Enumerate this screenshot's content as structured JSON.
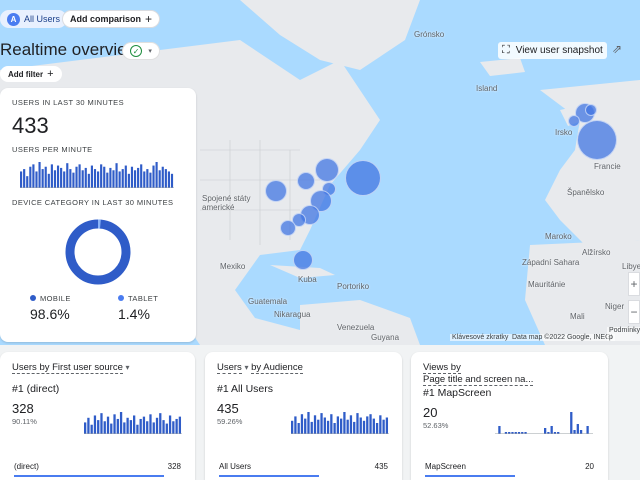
{
  "header": {
    "chip_badge": "A",
    "chip_all_users": "All Users",
    "add_comparison": "Add comparison",
    "add_comparison_icon": "plus-icon",
    "title": "Realtime overview",
    "add_filter": "Add filter",
    "view_snapshot": "View user snapshot",
    "status_icon": "check-circle-icon",
    "share_icon": "share-icon"
  },
  "map": {
    "labels": [
      {
        "text": "Grónsko"
      },
      {
        "text": "Island"
      },
      {
        "text": "Irsko"
      },
      {
        "text": "Francie"
      },
      {
        "text": "Španělsko"
      },
      {
        "text": "Spojené státy americké"
      },
      {
        "text": "Mexiko"
      },
      {
        "text": "Kuba"
      },
      {
        "text": "Guatemala"
      },
      {
        "text": "Nikaragua"
      },
      {
        "text": "Portoriko"
      },
      {
        "text": "Venezuela"
      },
      {
        "text": "Guyana"
      },
      {
        "text": "Alžírsko"
      },
      {
        "text": "Libye"
      },
      {
        "text": "Mali"
      },
      {
        "text": "Niger"
      },
      {
        "text": "Mauritánie"
      },
      {
        "text": "Maroko"
      },
      {
        "text": "Západní Sahara"
      }
    ],
    "attribution_shortcuts": "Klávesové zkratky",
    "attribution_data": "Data map ©2022 Google, INEGI",
    "attribution_terms": "Podmínky p"
  },
  "left_card": {
    "users_30_label": "USERS IN LAST 30 MINUTES",
    "users_30_value": "433",
    "users_per_minute_label": "USERS PER MINUTE",
    "device_label": "DEVICE CATEGORY IN LAST 30 MINUTES",
    "mobile_label": "MOBILE",
    "mobile_pct": "98.6%",
    "tablet_label": "TABLET",
    "tablet_pct": "1.4%",
    "per_minute_values": [
      14,
      16,
      10,
      18,
      20,
      14,
      22,
      16,
      18,
      12,
      20,
      15,
      19,
      17,
      14,
      21,
      16,
      13,
      18,
      20,
      15,
      17,
      12,
      19,
      16,
      14,
      20,
      18,
      13,
      17,
      15,
      21,
      14,
      16,
      19,
      12,
      18,
      15,
      17,
      20,
      14,
      16,
      13,
      19,
      22,
      15,
      18,
      16,
      14,
      12
    ],
    "device_split": {
      "mobile": 98.6,
      "tablet": 1.4
    }
  },
  "cards": {
    "source": {
      "title": "Users by First user source",
      "rank": "#1  (direct)",
      "value": "328",
      "pct": "90.11%",
      "row_label": "(direct)",
      "row_value": "328",
      "bars": [
        10,
        14,
        8,
        16,
        12,
        18,
        11,
        15,
        9,
        17,
        13,
        19,
        10,
        14,
        12,
        16,
        8,
        13,
        15,
        11,
        17,
        10,
        14,
        18,
        12,
        9,
        16,
        11,
        13,
        15
      ]
    },
    "audience": {
      "title_part1": "Users",
      "title_part2": "by Audience",
      "rank": "#1  All Users",
      "value": "435",
      "pct": "59.26%",
      "row_label": "All Users",
      "row_value": "435",
      "bars": [
        12,
        16,
        10,
        18,
        14,
        20,
        11,
        17,
        13,
        19,
        15,
        12,
        18,
        10,
        16,
        14,
        20,
        13,
        17,
        11,
        19,
        15,
        12,
        16,
        18,
        14,
        10,
        17,
        13,
        15
      ]
    },
    "views": {
      "title_line1": "Views by",
      "title_line2": "Page title and screen na...",
      "rank": "#1  MapScreen",
      "value": "20",
      "pct": "52.63%",
      "row_label": "MapScreen",
      "row_value": "20",
      "bars": [
        0,
        8,
        0,
        2,
        2,
        2,
        2,
        2,
        2,
        2,
        0,
        0,
        0,
        0,
        0,
        6,
        2,
        8,
        2,
        2,
        0,
        0,
        0,
        22,
        4,
        10,
        4,
        0,
        8,
        0
      ]
    }
  },
  "colors": {
    "accent": "#4a7cf0",
    "bubble": "#4276e1",
    "card_bar": "#2f5cc8"
  }
}
